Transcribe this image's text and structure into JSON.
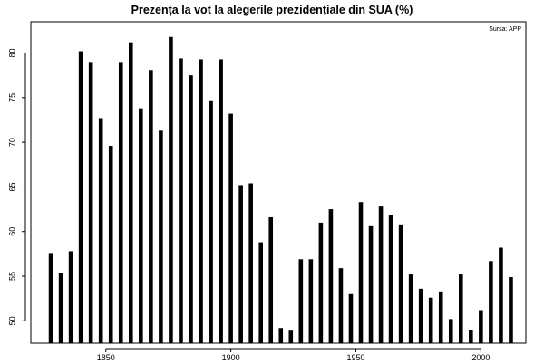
{
  "chart_data": {
    "type": "bar",
    "title": "Prezența la vot la alegerile prezidențiale din SUA (%)",
    "source_note": "Sursa: APP",
    "xlabel": "",
    "ylabel": "",
    "xlim": [
      1820,
      2018
    ],
    "ylim": [
      47.5,
      83.5
    ],
    "x_ticks": [
      1850,
      1900,
      1950,
      2000
    ],
    "y_ticks": [
      50,
      55,
      60,
      65,
      70,
      75,
      80
    ],
    "bar_color": "#000000",
    "grid": false,
    "x": [
      1828,
      1832,
      1836,
      1840,
      1844,
      1848,
      1852,
      1856,
      1860,
      1864,
      1868,
      1872,
      1876,
      1880,
      1884,
      1888,
      1892,
      1896,
      1900,
      1904,
      1908,
      1912,
      1916,
      1920,
      1924,
      1928,
      1932,
      1936,
      1940,
      1944,
      1948,
      1952,
      1956,
      1960,
      1964,
      1968,
      1972,
      1976,
      1980,
      1984,
      1988,
      1992,
      1996,
      2000,
      2004,
      2008,
      2012
    ],
    "values": [
      57.6,
      55.4,
      57.8,
      80.2,
      78.9,
      72.7,
      69.6,
      78.9,
      81.2,
      73.8,
      78.1,
      71.3,
      81.8,
      79.4,
      77.5,
      79.3,
      74.7,
      79.3,
      73.2,
      65.2,
      65.4,
      58.8,
      61.6,
      49.2,
      48.9,
      56.9,
      56.9,
      61.0,
      62.5,
      55.9,
      53.0,
      63.3,
      60.6,
      62.8,
      61.9,
      60.8,
      55.2,
      53.6,
      52.6,
      53.3,
      50.2,
      55.2,
      49.0,
      51.2,
      56.7,
      58.2,
      54.9
    ]
  }
}
